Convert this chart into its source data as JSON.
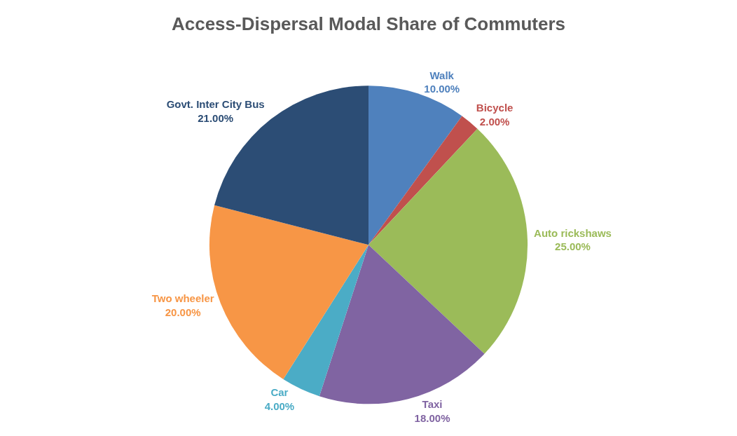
{
  "chart_data": {
    "type": "pie",
    "title": "Access-Dispersal Modal Share of Commuters",
    "categories": [
      "Walk",
      "Bicycle",
      "Auto rickshaws",
      "Taxi",
      "Car",
      "Two wheeler",
      "Govt. Inter City Bus"
    ],
    "values": [
      10,
      2,
      25,
      18,
      4,
      20,
      21
    ],
    "value_labels": [
      "10.00%",
      "2.00%",
      "25.00%",
      "18.00%",
      "4.00%",
      "20.00%",
      "21.00%"
    ],
    "colors": [
      "#4f81bd",
      "#c0504d",
      "#9bbb59",
      "#8064a2",
      "#4bacc6",
      "#f79646",
      "#2c4d75"
    ],
    "legend": false
  }
}
